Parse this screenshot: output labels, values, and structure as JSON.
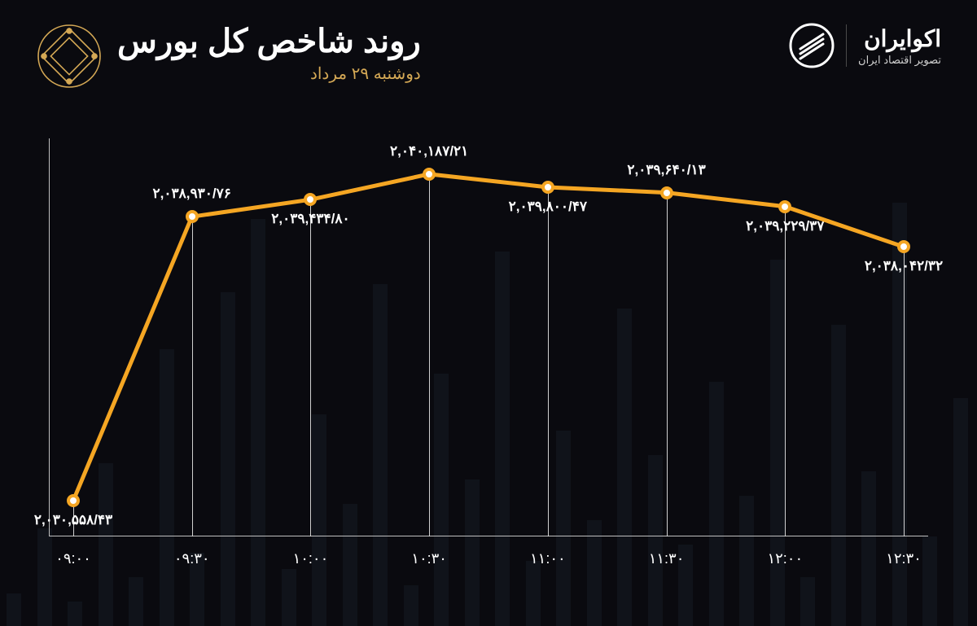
{
  "header": {
    "title": "روند شاخص کل بورس",
    "subtitle": "دوشنبه ۲۹ مرداد",
    "brand_name": "اکوایران",
    "brand_tagline": "تصویر اقتصاد ایران"
  },
  "chart": {
    "type": "line",
    "background_color": "#0a0a0f",
    "line_color": "#f5a623",
    "line_width": 5,
    "marker_fill": "#ffffff",
    "marker_stroke": "#f5a623",
    "marker_stroke_width": 4,
    "marker_radius": 8,
    "axis_color": "#bfbfbf",
    "drop_line_color": "#e6e6e6",
    "label_color": "#ffffff",
    "label_fontsize": 17,
    "xaxis_fontsize": 18,
    "accent_color": "#d4a855",
    "x_labels": [
      "۰۹:۰۰",
      "۰۹:۳۰",
      "۱۰:۰۰",
      "۱۰:۳۰",
      "۱۱:۰۰",
      "۱۱:۳۰",
      "۱۲:۰۰",
      "۱۲:۳۰"
    ],
    "values": [
      2030558.43,
      2038930.76,
      2039434.8,
      2040187.21,
      2039800.47,
      2039640.13,
      2039229.37,
      2038042.32
    ],
    "value_labels": [
      "۲,۰۳۰,۵۵۸/۴۳",
      "۲,۰۳۸,۹۳۰/۷۶",
      "۲,۰۳۹,۴۳۴/۸۰",
      "۲,۰۴۰,۱۸۷/۲۱",
      "۲,۰۳۹,۸۰۰/۴۷",
      "۲,۰۳۹,۶۴۰/۱۳",
      "۲,۰۳۹,۲۲۹/۳۷",
      "۲,۰۳۸,۰۴۲/۳۲"
    ],
    "label_above": [
      false,
      true,
      false,
      true,
      false,
      true,
      false,
      false
    ],
    "ylim": [
      2029500,
      2041000
    ],
    "bg_bar_color": "#141820"
  }
}
